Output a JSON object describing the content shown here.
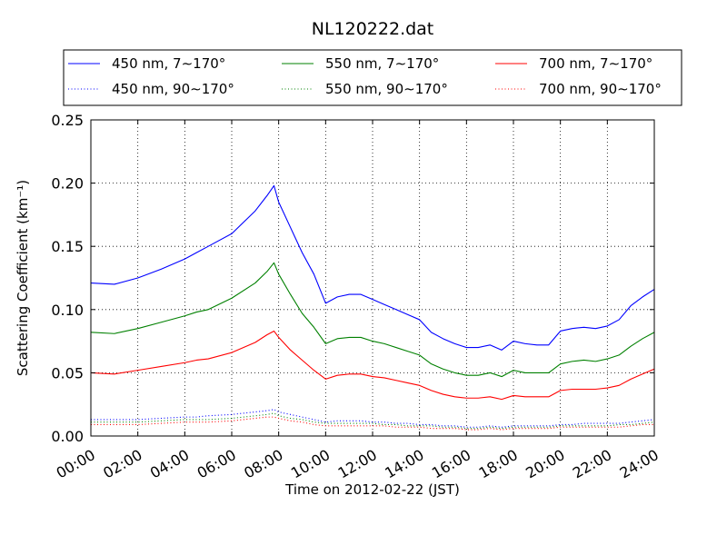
{
  "chart_data": {
    "type": "line",
    "title": "NL120222.dat",
    "xlabel": "Time on 2012-02-22 (JST)",
    "ylabel": "Scattering Coefficient (km⁻¹)",
    "xlim": [
      0,
      24
    ],
    "ylim": [
      0,
      0.25
    ],
    "x_ticks": [
      "00:00",
      "02:00",
      "04:00",
      "06:00",
      "08:00",
      "10:00",
      "12:00",
      "14:00",
      "16:00",
      "18:00",
      "20:00",
      "22:00",
      "24:00"
    ],
    "y_ticks": [
      "0.00",
      "0.05",
      "0.10",
      "0.15",
      "0.20",
      "0.25"
    ],
    "grid": true,
    "legend_position": "top, above plot",
    "x": [
      0,
      1,
      2,
      3,
      4,
      4.5,
      5,
      6,
      7,
      7.5,
      7.8,
      8,
      8.5,
      9,
      9.5,
      10,
      10.5,
      11,
      11.5,
      12,
      12.5,
      13,
      13.5,
      14,
      14.5,
      15,
      15.5,
      16,
      16.5,
      17,
      17.5,
      18,
      18.5,
      19,
      19.5,
      20,
      20.5,
      21,
      21.5,
      22,
      22.5,
      23,
      23.5,
      24
    ],
    "series": [
      {
        "name": "450 nm, 7∼170°",
        "color": "#0000ff",
        "style": "solid",
        "values": [
          0.121,
          0.12,
          0.125,
          0.132,
          0.14,
          0.145,
          0.15,
          0.16,
          0.178,
          0.19,
          0.198,
          0.185,
          0.165,
          0.145,
          0.128,
          0.105,
          0.11,
          0.112,
          0.112,
          0.108,
          0.104,
          0.1,
          0.096,
          0.092,
          0.082,
          0.077,
          0.073,
          0.07,
          0.07,
          0.072,
          0.068,
          0.075,
          0.073,
          0.072,
          0.072,
          0.083,
          0.085,
          0.086,
          0.085,
          0.087,
          0.092,
          0.103,
          0.11,
          0.116
        ]
      },
      {
        "name": "450 nm, 90∼170°",
        "color": "#0000ff",
        "style": "dotted",
        "values": [
          0.013,
          0.013,
          0.013,
          0.014,
          0.015,
          0.015,
          0.016,
          0.017,
          0.019,
          0.02,
          0.021,
          0.019,
          0.017,
          0.015,
          0.013,
          0.011,
          0.012,
          0.012,
          0.012,
          0.011,
          0.011,
          0.01,
          0.01,
          0.009,
          0.009,
          0.008,
          0.008,
          0.007,
          0.007,
          0.008,
          0.007,
          0.008,
          0.008,
          0.008,
          0.008,
          0.009,
          0.009,
          0.01,
          0.01,
          0.01,
          0.01,
          0.011,
          0.012,
          0.013
        ]
      },
      {
        "name": "550 nm, 7∼170°",
        "color": "#008000",
        "style": "solid",
        "values": [
          0.082,
          0.081,
          0.085,
          0.09,
          0.095,
          0.098,
          0.1,
          0.109,
          0.121,
          0.13,
          0.137,
          0.128,
          0.112,
          0.097,
          0.086,
          0.073,
          0.077,
          0.078,
          0.078,
          0.075,
          0.073,
          0.07,
          0.067,
          0.064,
          0.057,
          0.053,
          0.05,
          0.048,
          0.048,
          0.05,
          0.047,
          0.052,
          0.05,
          0.05,
          0.05,
          0.057,
          0.059,
          0.06,
          0.059,
          0.061,
          0.064,
          0.071,
          0.077,
          0.082
        ]
      },
      {
        "name": "550 nm, 90∼170°",
        "color": "#008000",
        "style": "dotted",
        "values": [
          0.011,
          0.011,
          0.011,
          0.012,
          0.013,
          0.013,
          0.013,
          0.014,
          0.016,
          0.017,
          0.018,
          0.016,
          0.014,
          0.013,
          0.011,
          0.01,
          0.01,
          0.01,
          0.01,
          0.01,
          0.009,
          0.009,
          0.008,
          0.008,
          0.008,
          0.007,
          0.007,
          0.006,
          0.006,
          0.007,
          0.006,
          0.007,
          0.007,
          0.007,
          0.007,
          0.008,
          0.008,
          0.008,
          0.008,
          0.008,
          0.009,
          0.009,
          0.01,
          0.011
        ]
      },
      {
        "name": "700 nm, 7∼170°",
        "color": "#ff0000",
        "style": "solid",
        "values": [
          0.05,
          0.049,
          0.052,
          0.055,
          0.058,
          0.06,
          0.061,
          0.066,
          0.074,
          0.08,
          0.083,
          0.078,
          0.068,
          0.06,
          0.052,
          0.045,
          0.048,
          0.049,
          0.049,
          0.047,
          0.046,
          0.044,
          0.042,
          0.04,
          0.036,
          0.033,
          0.031,
          0.03,
          0.03,
          0.031,
          0.029,
          0.032,
          0.031,
          0.031,
          0.031,
          0.036,
          0.037,
          0.037,
          0.037,
          0.038,
          0.04,
          0.045,
          0.049,
          0.053
        ]
      },
      {
        "name": "700 nm, 90∼170°",
        "color": "#ff0000",
        "style": "dotted",
        "values": [
          0.009,
          0.009,
          0.009,
          0.01,
          0.011,
          0.011,
          0.011,
          0.012,
          0.014,
          0.015,
          0.015,
          0.014,
          0.012,
          0.011,
          0.009,
          0.008,
          0.008,
          0.008,
          0.008,
          0.008,
          0.008,
          0.007,
          0.007,
          0.007,
          0.006,
          0.006,
          0.006,
          0.005,
          0.005,
          0.006,
          0.005,
          0.006,
          0.006,
          0.006,
          0.006,
          0.007,
          0.007,
          0.007,
          0.007,
          0.007,
          0.007,
          0.008,
          0.009,
          0.009
        ]
      }
    ]
  }
}
